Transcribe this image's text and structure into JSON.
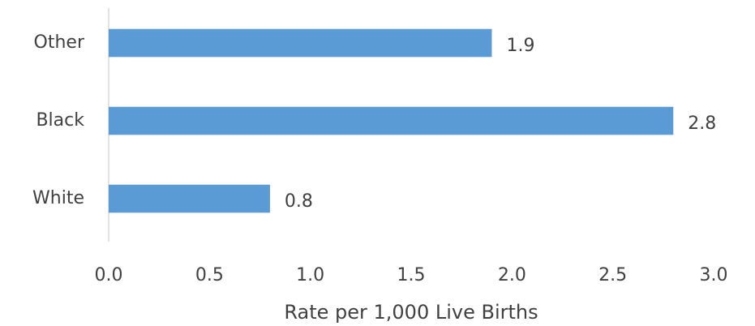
{
  "chart_data": {
    "type": "hbar",
    "categories": [
      "Other",
      "Black",
      "White"
    ],
    "values": [
      1.9,
      2.8,
      0.8
    ],
    "color": "#5b9bd5",
    "x_label": "Rate per 1,000 Live Births",
    "xlim": [
      0,
      3
    ],
    "xticks": [
      {
        "value": 0,
        "label": "0.0"
      },
      0.5,
      {
        "value": 1,
        "label": "1.0"
      },
      1.5,
      {
        "value": 2,
        "label": "2.0"
      },
      2.5,
      {
        "value": 3,
        "label": "3.0"
      }
    ],
    "grid": false
  }
}
